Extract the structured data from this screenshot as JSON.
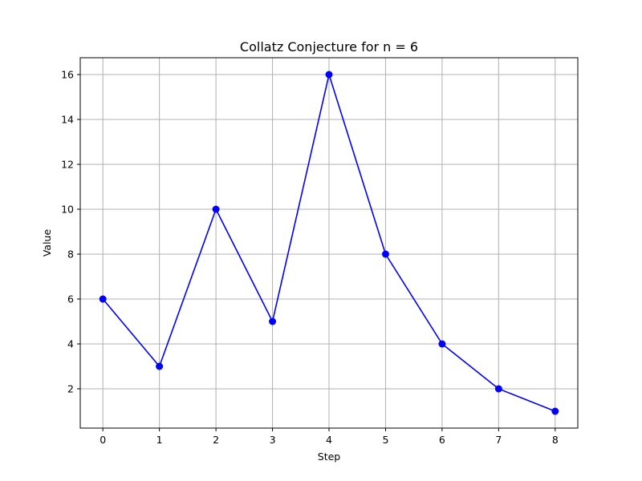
{
  "chart_data": {
    "type": "line",
    "title": "Collatz Conjecture for n = 6",
    "xlabel": "Step",
    "ylabel": "Value",
    "x": [
      0,
      1,
      2,
      3,
      4,
      5,
      6,
      7,
      8
    ],
    "series": [
      {
        "values": [
          6,
          3,
          10,
          5,
          16,
          8,
          4,
          2,
          1
        ],
        "color": "#0000ff",
        "marker": "circle"
      }
    ],
    "xticks": [
      0,
      1,
      2,
      3,
      4,
      5,
      6,
      7,
      8
    ],
    "yticks": [
      2,
      4,
      6,
      8,
      10,
      12,
      14,
      16
    ],
    "xlim": [
      -0.4,
      8.4
    ],
    "ylim": [
      0.25,
      16.75
    ],
    "grid": true,
    "legend": "none"
  }
}
